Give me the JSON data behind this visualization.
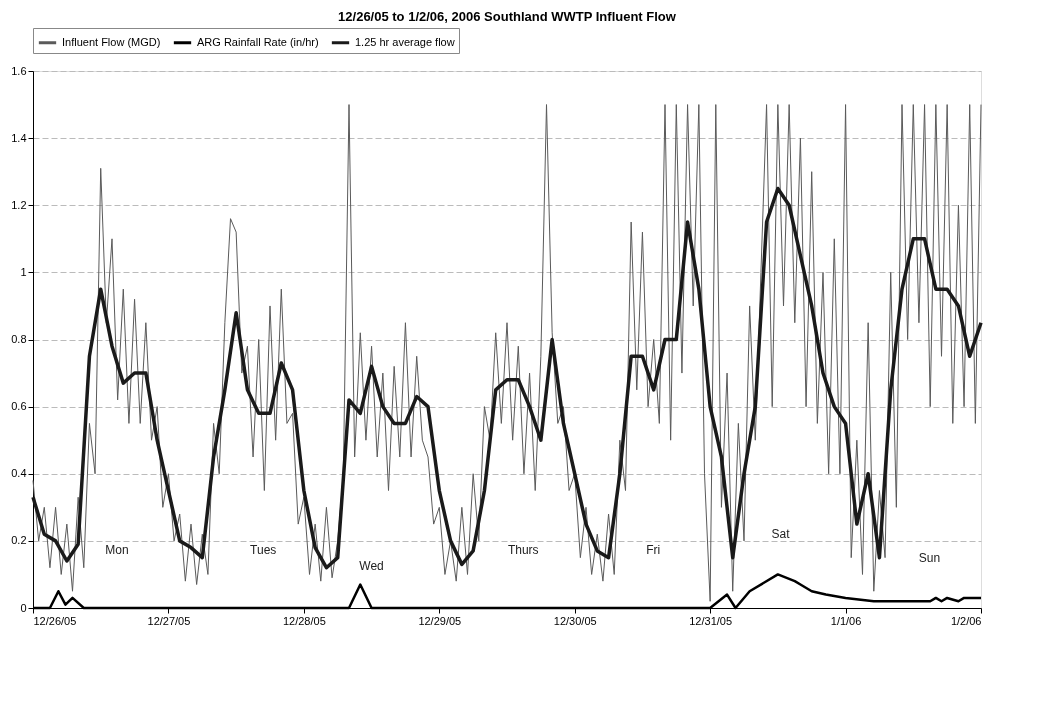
{
  "chart_data": {
    "type": "line",
    "title": "12/26/05 to 1/2/06, 2006 Southland WWTP Influent Flow",
    "xlim": [
      "2005-12-26",
      "2006-01-02"
    ],
    "xticks": [
      {
        "value": "2005-12-26",
        "label": "12/26/05"
      },
      {
        "value": "2005-12-27",
        "label": "12/27/05"
      },
      {
        "value": "2005-12-28",
        "label": "12/28/05"
      },
      {
        "value": "2005-12-29",
        "label": "12/29/05"
      },
      {
        "value": "2005-12-30",
        "label": "12/30/05"
      },
      {
        "value": "2005-12-31",
        "label": "12/31/05"
      },
      {
        "value": "2006-01-01",
        "label": "1/1/06"
      },
      {
        "value": "2006-01-02",
        "label": "1/2/06"
      }
    ],
    "ylim": [
      0,
      1.6
    ],
    "yticks": [
      0,
      0.2,
      0.4,
      0.6,
      0.8,
      1,
      1.2,
      1.4,
      1.6
    ],
    "grid": "y",
    "legend": "top",
    "marker": "none",
    "line_style": "solid",
    "annotations": [
      "Mon",
      "Tues",
      "Wed",
      "Thurs",
      "Fri",
      "Sat",
      "Sun"
    ],
    "series": [
      {
        "name": "Influent Flow (MGD)",
        "color": "#5a5a5a",
        "x": [
          "2005-12-26T00:00",
          "2005-12-26T01:00",
          "2005-12-26T02:00",
          "2005-12-26T03:00",
          "2005-12-26T04:00",
          "2005-12-26T05:00",
          "2005-12-26T06:00",
          "2005-12-26T07:00",
          "2005-12-26T08:00",
          "2005-12-26T09:00",
          "2005-12-26T10:00",
          "2005-12-26T11:00",
          "2005-12-26T12:00",
          "2005-12-26T13:00",
          "2005-12-26T14:00",
          "2005-12-26T15:00",
          "2005-12-26T16:00",
          "2005-12-26T17:00",
          "2005-12-26T18:00",
          "2005-12-26T19:00",
          "2005-12-26T20:00",
          "2005-12-26T21:00",
          "2005-12-26T22:00",
          "2005-12-26T23:00",
          "2005-12-27T00:00",
          "2005-12-27T01:00",
          "2005-12-27T02:00",
          "2005-12-27T03:00",
          "2005-12-27T04:00",
          "2005-12-27T05:00",
          "2005-12-27T06:00",
          "2005-12-27T07:00",
          "2005-12-27T08:00",
          "2005-12-27T09:00",
          "2005-12-27T10:00",
          "2005-12-27T11:00",
          "2005-12-27T12:00",
          "2005-12-27T13:00",
          "2005-12-27T14:00",
          "2005-12-27T15:00",
          "2005-12-27T16:00",
          "2005-12-27T17:00",
          "2005-12-27T18:00",
          "2005-12-27T19:00",
          "2005-12-27T20:00",
          "2005-12-27T21:00",
          "2005-12-27T22:00",
          "2005-12-27T23:00",
          "2005-12-28T00:00",
          "2005-12-28T01:00",
          "2005-12-28T02:00",
          "2005-12-28T03:00",
          "2005-12-28T04:00",
          "2005-12-28T05:00",
          "2005-12-28T06:00",
          "2005-12-28T07:00",
          "2005-12-28T08:00",
          "2005-12-28T09:00",
          "2005-12-28T10:00",
          "2005-12-28T11:00",
          "2005-12-28T12:00",
          "2005-12-28T13:00",
          "2005-12-28T14:00",
          "2005-12-28T15:00",
          "2005-12-28T16:00",
          "2005-12-28T17:00",
          "2005-12-28T18:00",
          "2005-12-28T19:00",
          "2005-12-28T20:00",
          "2005-12-28T21:00",
          "2005-12-28T22:00",
          "2005-12-28T23:00",
          "2005-12-29T00:00",
          "2005-12-29T01:00",
          "2005-12-29T02:00",
          "2005-12-29T03:00",
          "2005-12-29T04:00",
          "2005-12-29T05:00",
          "2005-12-29T06:00",
          "2005-12-29T07:00",
          "2005-12-29T08:00",
          "2005-12-29T09:00",
          "2005-12-29T10:00",
          "2005-12-29T11:00",
          "2005-12-29T12:00",
          "2005-12-29T13:00",
          "2005-12-29T14:00",
          "2005-12-29T15:00",
          "2005-12-29T16:00",
          "2005-12-29T17:00",
          "2005-12-29T18:00",
          "2005-12-29T19:00",
          "2005-12-29T20:00",
          "2005-12-29T21:00",
          "2005-12-29T22:00",
          "2005-12-29T23:00",
          "2005-12-30T00:00",
          "2005-12-30T01:00",
          "2005-12-30T02:00",
          "2005-12-30T03:00",
          "2005-12-30T04:00",
          "2005-12-30T05:00",
          "2005-12-30T06:00",
          "2005-12-30T07:00",
          "2005-12-30T08:00",
          "2005-12-30T09:00",
          "2005-12-30T10:00",
          "2005-12-30T11:00",
          "2005-12-30T12:00",
          "2005-12-30T13:00",
          "2005-12-30T14:00",
          "2005-12-30T15:00",
          "2005-12-30T16:00",
          "2005-12-30T17:00",
          "2005-12-30T18:00",
          "2005-12-30T19:00",
          "2005-12-30T20:00",
          "2005-12-30T21:00",
          "2005-12-30T22:00",
          "2005-12-30T23:00",
          "2005-12-31T00:00",
          "2005-12-31T01:00",
          "2005-12-31T02:00",
          "2005-12-31T03:00",
          "2005-12-31T04:00",
          "2005-12-31T05:00",
          "2005-12-31T06:00",
          "2005-12-31T07:00",
          "2005-12-31T08:00",
          "2005-12-31T09:00",
          "2005-12-31T10:00",
          "2005-12-31T11:00",
          "2005-12-31T12:00",
          "2005-12-31T13:00",
          "2005-12-31T14:00",
          "2005-12-31T15:00",
          "2005-12-31T16:00",
          "2005-12-31T17:00",
          "2005-12-31T18:00",
          "2005-12-31T19:00",
          "2005-12-31T20:00",
          "2005-12-31T21:00",
          "2005-12-31T22:00",
          "2005-12-31T23:00",
          "2006-01-01T00:00",
          "2006-01-01T01:00",
          "2006-01-01T02:00",
          "2006-01-01T03:00",
          "2006-01-01T04:00",
          "2006-01-01T05:00",
          "2006-01-01T06:00",
          "2006-01-01T07:00",
          "2006-01-01T08:00",
          "2006-01-01T09:00",
          "2006-01-01T10:00",
          "2006-01-01T11:00",
          "2006-01-01T12:00",
          "2006-01-01T13:00",
          "2006-01-01T14:00",
          "2006-01-01T15:00",
          "2006-01-01T16:00",
          "2006-01-01T17:00",
          "2006-01-01T18:00",
          "2006-01-01T19:00",
          "2006-01-01T20:00",
          "2006-01-01T21:00",
          "2006-01-01T22:00",
          "2006-01-01T23:00",
          "2006-01-02T00:00"
        ],
        "values": [
          0.38,
          0.2,
          0.3,
          0.12,
          0.3,
          0.1,
          0.25,
          0.05,
          0.33,
          0.12,
          0.55,
          0.4,
          1.31,
          0.85,
          1.1,
          0.62,
          0.95,
          0.55,
          0.92,
          0.55,
          0.85,
          0.5,
          0.6,
          0.3,
          0.4,
          0.2,
          0.28,
          0.08,
          0.25,
          0.07,
          0.22,
          0.1,
          0.55,
          0.4,
          0.85,
          1.16,
          1.12,
          0.7,
          0.78,
          0.45,
          0.8,
          0.35,
          0.9,
          0.5,
          0.95,
          0.55,
          0.58,
          0.25,
          0.33,
          0.1,
          0.25,
          0.08,
          0.3,
          0.09,
          0.2,
          0.4,
          1.5,
          0.45,
          0.82,
          0.5,
          0.78,
          0.45,
          0.7,
          0.35,
          0.72,
          0.45,
          0.85,
          0.45,
          0.75,
          0.5,
          0.45,
          0.25,
          0.3,
          0.1,
          0.2,
          0.08,
          0.3,
          0.1,
          0.4,
          0.2,
          0.6,
          0.5,
          0.82,
          0.55,
          0.85,
          0.5,
          0.78,
          0.4,
          0.7,
          0.35,
          0.75,
          1.5,
          0.82,
          0.55,
          0.6,
          0.35,
          0.4,
          0.15,
          0.3,
          0.1,
          0.22,
          0.08,
          0.28,
          0.1,
          0.5,
          0.35,
          1.15,
          0.65,
          1.12,
          0.6,
          0.8,
          0.55,
          1.5,
          0.5,
          1.5,
          0.7,
          1.5,
          0.9,
          1.5,
          0.4,
          0.02,
          1.5,
          0.3,
          0.7,
          0.05,
          0.55,
          0.2,
          0.9,
          0.5,
          1.0,
          1.5,
          0.6,
          1.5,
          0.9,
          1.5,
          0.85,
          1.4,
          0.6,
          1.3,
          0.55,
          1.0,
          0.4,
          1.1,
          0.4,
          1.5,
          0.15,
          0.5,
          0.1,
          0.85,
          0.05,
          0.35,
          0.15,
          1.0,
          0.3,
          1.5,
          0.8,
          1.5,
          0.85,
          1.5,
          0.6,
          1.5,
          0.75,
          1.5,
          0.55,
          1.2,
          0.6,
          1.5,
          0.55,
          1.5
        ]
      },
      {
        "name": "ARG Rainfall Rate (in/hr)",
        "color": "#000000",
        "x": [
          "2005-12-26T00:00",
          "2005-12-26T03:00",
          "2005-12-26T04:30",
          "2005-12-26T05:45",
          "2005-12-26T07:00",
          "2005-12-26T09:00",
          "2005-12-28T08:00",
          "2005-12-28T10:00",
          "2005-12-28T12:00",
          "2005-12-31T00:00",
          "2005-12-31T03:00",
          "2005-12-31T04:30",
          "2005-12-31T07:00",
          "2005-12-31T12:00",
          "2005-12-31T15:00",
          "2005-12-31T16:00",
          "2005-12-31T18:00",
          "2005-12-31T20:30",
          "2006-01-01T00:00",
          "2006-01-01T05:00",
          "2006-01-01T15:00",
          "2006-01-01T16:00",
          "2006-01-01T17:00",
          "2006-01-01T18:00",
          "2006-01-01T20:00",
          "2006-01-01T21:00",
          "2006-01-02T00:00"
        ],
        "values": [
          0,
          0,
          0.05,
          0.01,
          0.03,
          0,
          0,
          0.07,
          0,
          0,
          0.04,
          0,
          0.05,
          0.1,
          0.08,
          0.07,
          0.05,
          0.04,
          0.03,
          0.02,
          0.02,
          0.03,
          0.02,
          0.03,
          0.02,
          0.03,
          0.03
        ]
      },
      {
        "name": "1.25 hr average flow",
        "color": "#1a1a1a",
        "x": [
          "2005-12-26T00:00",
          "2005-12-26T02:00",
          "2005-12-26T04:00",
          "2005-12-26T06:00",
          "2005-12-26T08:00",
          "2005-12-26T10:00",
          "2005-12-26T12:00",
          "2005-12-26T14:00",
          "2005-12-26T16:00",
          "2005-12-26T18:00",
          "2005-12-26T20:00",
          "2005-12-26T22:00",
          "2005-12-27T00:00",
          "2005-12-27T02:00",
          "2005-12-27T04:00",
          "2005-12-27T06:00",
          "2005-12-27T08:00",
          "2005-12-27T10:00",
          "2005-12-27T12:00",
          "2005-12-27T14:00",
          "2005-12-27T16:00",
          "2005-12-27T18:00",
          "2005-12-27T20:00",
          "2005-12-27T22:00",
          "2005-12-28T00:00",
          "2005-12-28T02:00",
          "2005-12-28T04:00",
          "2005-12-28T06:00",
          "2005-12-28T08:00",
          "2005-12-28T10:00",
          "2005-12-28T12:00",
          "2005-12-28T14:00",
          "2005-12-28T16:00",
          "2005-12-28T18:00",
          "2005-12-28T20:00",
          "2005-12-28T22:00",
          "2005-12-29T00:00",
          "2005-12-29T02:00",
          "2005-12-29T04:00",
          "2005-12-29T06:00",
          "2005-12-29T08:00",
          "2005-12-29T10:00",
          "2005-12-29T12:00",
          "2005-12-29T14:00",
          "2005-12-29T16:00",
          "2005-12-29T18:00",
          "2005-12-29T20:00",
          "2005-12-29T22:00",
          "2005-12-30T00:00",
          "2005-12-30T02:00",
          "2005-12-30T04:00",
          "2005-12-30T06:00",
          "2005-12-30T08:00",
          "2005-12-30T10:00",
          "2005-12-30T12:00",
          "2005-12-30T14:00",
          "2005-12-30T16:00",
          "2005-12-30T18:00",
          "2005-12-30T20:00",
          "2005-12-30T22:00",
          "2005-12-31T00:00",
          "2005-12-31T02:00",
          "2005-12-31T04:00",
          "2005-12-31T06:00",
          "2005-12-31T08:00",
          "2005-12-31T10:00",
          "2005-12-31T12:00",
          "2005-12-31T14:00",
          "2005-12-31T16:00",
          "2005-12-31T18:00",
          "2005-12-31T20:00",
          "2005-12-31T22:00",
          "2006-01-01T00:00",
          "2006-01-01T02:00",
          "2006-01-01T04:00",
          "2006-01-01T06:00",
          "2006-01-01T08:00",
          "2006-01-01T10:00",
          "2006-01-01T12:00",
          "2006-01-01T14:00",
          "2006-01-01T16:00",
          "2006-01-01T18:00",
          "2006-01-01T20:00",
          "2006-01-01T22:00",
          "2006-01-02T00:00"
        ],
        "values": [
          0.33,
          0.22,
          0.2,
          0.14,
          0.19,
          0.75,
          0.95,
          0.78,
          0.67,
          0.7,
          0.7,
          0.5,
          0.35,
          0.2,
          0.18,
          0.15,
          0.45,
          0.65,
          0.88,
          0.65,
          0.58,
          0.58,
          0.73,
          0.65,
          0.35,
          0.18,
          0.12,
          0.15,
          0.62,
          0.58,
          0.72,
          0.6,
          0.55,
          0.55,
          0.63,
          0.6,
          0.35,
          0.2,
          0.13,
          0.17,
          0.35,
          0.65,
          0.68,
          0.68,
          0.6,
          0.5,
          0.8,
          0.55,
          0.4,
          0.25,
          0.17,
          0.15,
          0.4,
          0.75,
          0.75,
          0.65,
          0.8,
          0.8,
          1.15,
          0.95,
          0.6,
          0.45,
          0.15,
          0.4,
          0.6,
          1.15,
          1.25,
          1.2,
          1.05,
          0.9,
          0.7,
          0.6,
          0.55,
          0.25,
          0.4,
          0.15,
          0.65,
          0.95,
          1.1,
          1.1,
          0.95,
          0.95,
          0.9,
          0.75,
          0.85
        ]
      }
    ]
  }
}
